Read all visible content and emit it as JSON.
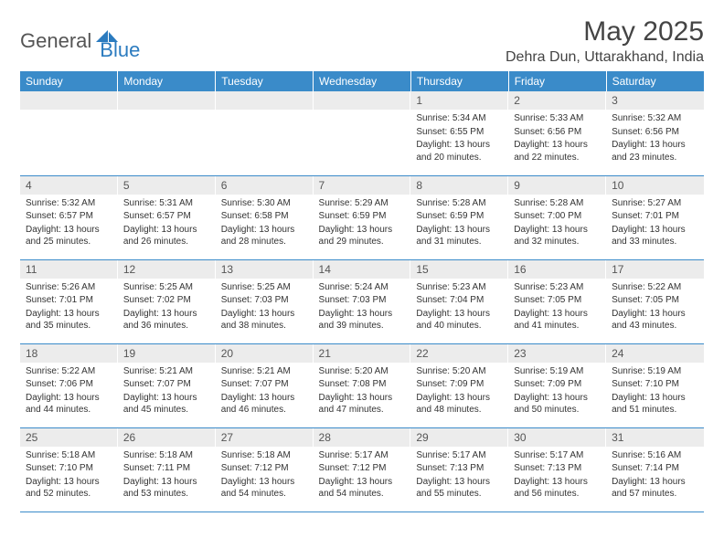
{
  "logo": {
    "text1": "General",
    "text2": "Blue"
  },
  "title": "May 2025",
  "location": "Dehra Dun, Uttarakhand, India",
  "colors": {
    "header_bg": "#3a8bc9",
    "header_text": "#ffffff",
    "daynum_bg": "#ececec",
    "rule": "#3a8bc9",
    "logo_gray": "#555555",
    "logo_blue": "#2b7bbf"
  },
  "weekdays": [
    "Sunday",
    "Monday",
    "Tuesday",
    "Wednesday",
    "Thursday",
    "Friday",
    "Saturday"
  ],
  "weeks": [
    [
      null,
      null,
      null,
      null,
      {
        "n": "1",
        "sunrise": "5:34 AM",
        "sunset": "6:55 PM",
        "daylight": "13 hours and 20 minutes."
      },
      {
        "n": "2",
        "sunrise": "5:33 AM",
        "sunset": "6:56 PM",
        "daylight": "13 hours and 22 minutes."
      },
      {
        "n": "3",
        "sunrise": "5:32 AM",
        "sunset": "6:56 PM",
        "daylight": "13 hours and 23 minutes."
      }
    ],
    [
      {
        "n": "4",
        "sunrise": "5:32 AM",
        "sunset": "6:57 PM",
        "daylight": "13 hours and 25 minutes."
      },
      {
        "n": "5",
        "sunrise": "5:31 AM",
        "sunset": "6:57 PM",
        "daylight": "13 hours and 26 minutes."
      },
      {
        "n": "6",
        "sunrise": "5:30 AM",
        "sunset": "6:58 PM",
        "daylight": "13 hours and 28 minutes."
      },
      {
        "n": "7",
        "sunrise": "5:29 AM",
        "sunset": "6:59 PM",
        "daylight": "13 hours and 29 minutes."
      },
      {
        "n": "8",
        "sunrise": "5:28 AM",
        "sunset": "6:59 PM",
        "daylight": "13 hours and 31 minutes."
      },
      {
        "n": "9",
        "sunrise": "5:28 AM",
        "sunset": "7:00 PM",
        "daylight": "13 hours and 32 minutes."
      },
      {
        "n": "10",
        "sunrise": "5:27 AM",
        "sunset": "7:01 PM",
        "daylight": "13 hours and 33 minutes."
      }
    ],
    [
      {
        "n": "11",
        "sunrise": "5:26 AM",
        "sunset": "7:01 PM",
        "daylight": "13 hours and 35 minutes."
      },
      {
        "n": "12",
        "sunrise": "5:25 AM",
        "sunset": "7:02 PM",
        "daylight": "13 hours and 36 minutes."
      },
      {
        "n": "13",
        "sunrise": "5:25 AM",
        "sunset": "7:03 PM",
        "daylight": "13 hours and 38 minutes."
      },
      {
        "n": "14",
        "sunrise": "5:24 AM",
        "sunset": "7:03 PM",
        "daylight": "13 hours and 39 minutes."
      },
      {
        "n": "15",
        "sunrise": "5:23 AM",
        "sunset": "7:04 PM",
        "daylight": "13 hours and 40 minutes."
      },
      {
        "n": "16",
        "sunrise": "5:23 AM",
        "sunset": "7:05 PM",
        "daylight": "13 hours and 41 minutes."
      },
      {
        "n": "17",
        "sunrise": "5:22 AM",
        "sunset": "7:05 PM",
        "daylight": "13 hours and 43 minutes."
      }
    ],
    [
      {
        "n": "18",
        "sunrise": "5:22 AM",
        "sunset": "7:06 PM",
        "daylight": "13 hours and 44 minutes."
      },
      {
        "n": "19",
        "sunrise": "5:21 AM",
        "sunset": "7:07 PM",
        "daylight": "13 hours and 45 minutes."
      },
      {
        "n": "20",
        "sunrise": "5:21 AM",
        "sunset": "7:07 PM",
        "daylight": "13 hours and 46 minutes."
      },
      {
        "n": "21",
        "sunrise": "5:20 AM",
        "sunset": "7:08 PM",
        "daylight": "13 hours and 47 minutes."
      },
      {
        "n": "22",
        "sunrise": "5:20 AM",
        "sunset": "7:09 PM",
        "daylight": "13 hours and 48 minutes."
      },
      {
        "n": "23",
        "sunrise": "5:19 AM",
        "sunset": "7:09 PM",
        "daylight": "13 hours and 50 minutes."
      },
      {
        "n": "24",
        "sunrise": "5:19 AM",
        "sunset": "7:10 PM",
        "daylight": "13 hours and 51 minutes."
      }
    ],
    [
      {
        "n": "25",
        "sunrise": "5:18 AM",
        "sunset": "7:10 PM",
        "daylight": "13 hours and 52 minutes."
      },
      {
        "n": "26",
        "sunrise": "5:18 AM",
        "sunset": "7:11 PM",
        "daylight": "13 hours and 53 minutes."
      },
      {
        "n": "27",
        "sunrise": "5:18 AM",
        "sunset": "7:12 PM",
        "daylight": "13 hours and 54 minutes."
      },
      {
        "n": "28",
        "sunrise": "5:17 AM",
        "sunset": "7:12 PM",
        "daylight": "13 hours and 54 minutes."
      },
      {
        "n": "29",
        "sunrise": "5:17 AM",
        "sunset": "7:13 PM",
        "daylight": "13 hours and 55 minutes."
      },
      {
        "n": "30",
        "sunrise": "5:17 AM",
        "sunset": "7:13 PM",
        "daylight": "13 hours and 56 minutes."
      },
      {
        "n": "31",
        "sunrise": "5:16 AM",
        "sunset": "7:14 PM",
        "daylight": "13 hours and 57 minutes."
      }
    ]
  ],
  "labels": {
    "sunrise": "Sunrise:",
    "sunset": "Sunset:",
    "daylight": "Daylight:"
  }
}
